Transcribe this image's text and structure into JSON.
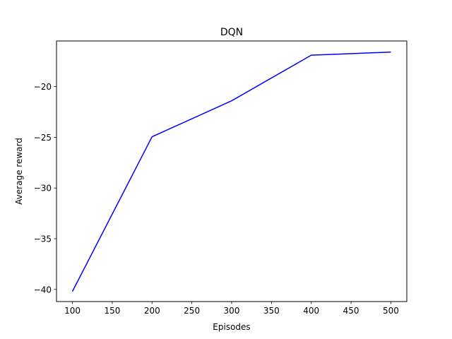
{
  "chart_data": {
    "type": "line",
    "title": "DQN",
    "xlabel": "Episodes",
    "ylabel": "Average reward",
    "x": [
      100,
      200,
      300,
      400,
      500
    ],
    "series": [
      {
        "values": [
          -40.2,
          -24.95,
          -21.4,
          -16.9,
          -16.6
        ],
        "color": "#0000ff"
      }
    ],
    "xlim": [
      80,
      520
    ],
    "ylim": [
      -41.2,
      -15.5
    ],
    "xticks": [
      100,
      150,
      200,
      250,
      300,
      350,
      400,
      450,
      500
    ],
    "xtick_labels": [
      "100",
      "150",
      "200",
      "250",
      "300",
      "350",
      "400",
      "450",
      "500"
    ],
    "yticks": [
      -40,
      -35,
      -30,
      -25,
      -20
    ],
    "ytick_labels": [
      "−40",
      "−35",
      "−30",
      "−25",
      "−20"
    ],
    "grid": false,
    "legend": "none"
  }
}
